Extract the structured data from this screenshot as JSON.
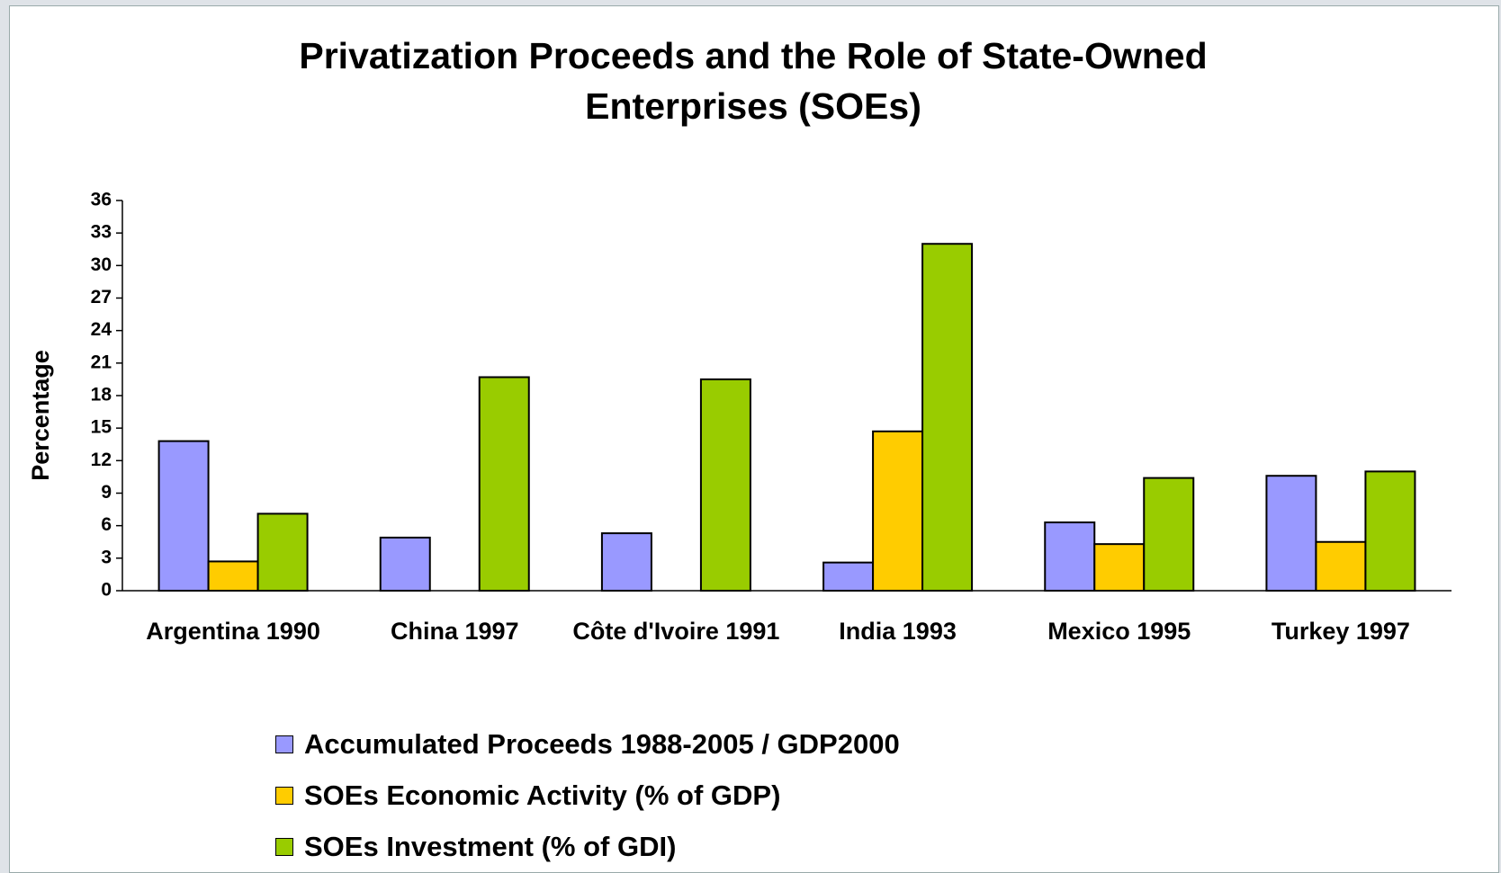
{
  "chart_data": {
    "type": "bar",
    "title": "Privatization Proceeds and the Role of State-Owned Enterprises (SOEs)",
    "y_label": "Percentage",
    "categories": [
      "Argentina 1990",
      "China 1997",
      "Côte d'Ivoire 1991",
      "India 1993",
      "Mexico 1995",
      "Turkey 1997"
    ],
    "series": [
      {
        "name": "Accumulated Proceeds 1988-2005 / GDP2000",
        "color": "#9999ff",
        "values": [
          13.8,
          4.9,
          5.3,
          2.6,
          6.3,
          10.6
        ]
      },
      {
        "name": "SOEs Economic Activity (% of GDP)",
        "color": "#ffcc00",
        "values": [
          2.7,
          null,
          null,
          14.7,
          4.3,
          4.5
        ]
      },
      {
        "name": "SOEs Investment (% of GDI)",
        "color": "#99cc00",
        "values": [
          7.1,
          19.7,
          19.5,
          32.0,
          10.4,
          11.0
        ]
      }
    ],
    "ylim": [
      0,
      36
    ],
    "yticks": [
      0,
      3,
      6,
      9,
      12,
      15,
      18,
      21,
      24,
      27,
      30,
      33,
      36
    ],
    "legend": "bottom"
  }
}
